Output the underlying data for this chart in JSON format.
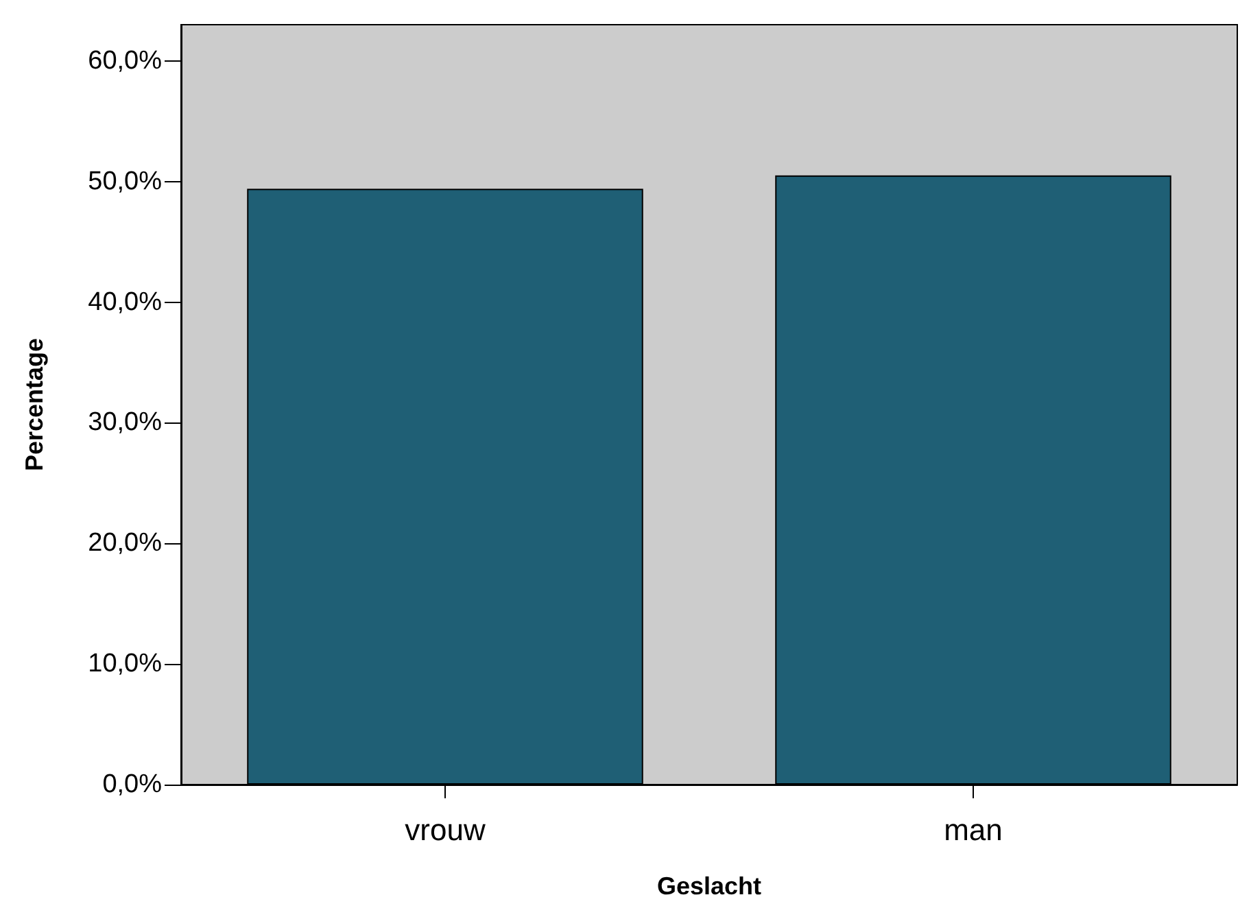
{
  "chart_data": {
    "type": "bar",
    "xlabel": "Geslacht",
    "ylabel": "Percentage",
    "categories": [
      "vrouw",
      "man"
    ],
    "values": [
      49.4,
      50.5
    ],
    "color": "#1f5f75",
    "ylim": [
      0,
      63
    ],
    "yticks": [
      {
        "value": 0,
        "label": "0,0%"
      },
      {
        "value": 10,
        "label": "10,0%"
      },
      {
        "value": 20,
        "label": "20,0%"
      },
      {
        "value": 30,
        "label": "30,0%"
      },
      {
        "value": 40,
        "label": "40,0%"
      },
      {
        "value": 50,
        "label": "50,0%"
      },
      {
        "value": 60,
        "label": "60,0%"
      }
    ],
    "grid": false
  }
}
